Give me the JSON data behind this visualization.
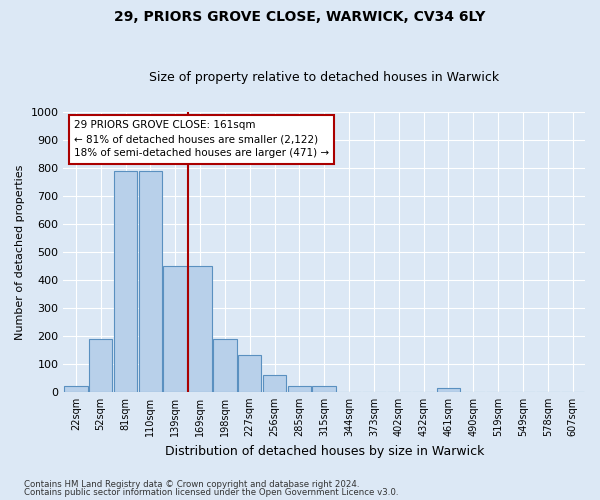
{
  "title": "29, PRIORS GROVE CLOSE, WARWICK, CV34 6LY",
  "subtitle": "Size of property relative to detached houses in Warwick",
  "xlabel": "Distribution of detached houses by size in Warwick",
  "ylabel": "Number of detached properties",
  "bin_labels": [
    "22sqm",
    "52sqm",
    "81sqm",
    "110sqm",
    "139sqm",
    "169sqm",
    "198sqm",
    "227sqm",
    "256sqm",
    "285sqm",
    "315sqm",
    "344sqm",
    "373sqm",
    "402sqm",
    "432sqm",
    "461sqm",
    "490sqm",
    "519sqm",
    "549sqm",
    "578sqm",
    "607sqm"
  ],
  "bar_heights": [
    20,
    190,
    790,
    790,
    450,
    450,
    190,
    130,
    60,
    20,
    20,
    0,
    0,
    0,
    0,
    15,
    0,
    0,
    0,
    0,
    0
  ],
  "bar_color": "#b8d0ea",
  "bar_edge_color": "#5a90c0",
  "property_line_x": 4.5,
  "annotation_text": "29 PRIORS GROVE CLOSE: 161sqm\n← 81% of detached houses are smaller (2,122)\n18% of semi-detached houses are larger (471) →",
  "red_line_color": "#aa0000",
  "ylim": [
    0,
    1000
  ],
  "yticks": [
    0,
    100,
    200,
    300,
    400,
    500,
    600,
    700,
    800,
    900,
    1000
  ],
  "footer_line1": "Contains HM Land Registry data © Crown copyright and database right 2024.",
  "footer_line2": "Contains public sector information licensed under the Open Government Licence v3.0.",
  "bg_color": "#dce8f5",
  "title_fontsize": 10,
  "subtitle_fontsize": 9
}
